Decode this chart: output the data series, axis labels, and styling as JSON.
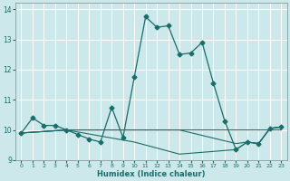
{
  "xlabel": "Humidex (Indice chaleur)",
  "background_color": "#cce8ea",
  "grid_color": "#ffffff",
  "line_color": "#1a6e6a",
  "xlim": [
    -0.5,
    23.5
  ],
  "ylim": [
    9,
    14.2
  ],
  "xticks": [
    0,
    1,
    2,
    3,
    4,
    5,
    6,
    7,
    8,
    9,
    10,
    11,
    12,
    13,
    14,
    15,
    16,
    17,
    18,
    19,
    20,
    21,
    22,
    23
  ],
  "yticks": [
    9,
    10,
    11,
    12,
    13,
    14
  ],
  "series": [
    {
      "x": [
        0,
        1,
        2,
        3,
        4,
        5,
        6,
        7,
        8,
        9,
        10,
        11,
        12,
        13,
        14,
        15,
        16,
        17,
        18,
        19,
        20,
        21,
        22,
        23
      ],
      "y": [
        9.9,
        10.4,
        10.15,
        10.15,
        10.0,
        9.85,
        9.7,
        9.6,
        10.75,
        9.75,
        11.75,
        13.75,
        13.4,
        13.45,
        12.5,
        12.55,
        12.9,
        11.55,
        10.3,
        9.35,
        9.6,
        9.55,
        10.05,
        10.1
      ],
      "has_markers": true
    },
    {
      "x": [
        0,
        4,
        23
      ],
      "y": [
        9.9,
        10.0,
        10.0
      ],
      "has_markers": false
    },
    {
      "x": [
        0,
        4,
        10,
        14,
        19,
        20,
        21,
        22,
        23
      ],
      "y": [
        9.9,
        10.0,
        10.0,
        10.0,
        9.55,
        9.6,
        9.55,
        10.05,
        10.1
      ],
      "has_markers": false
    },
    {
      "x": [
        0,
        4,
        10,
        14,
        19,
        20,
        21,
        22,
        23
      ],
      "y": [
        9.9,
        10.0,
        9.6,
        9.2,
        9.35,
        9.6,
        9.55,
        10.05,
        10.1
      ],
      "has_markers": false
    }
  ]
}
